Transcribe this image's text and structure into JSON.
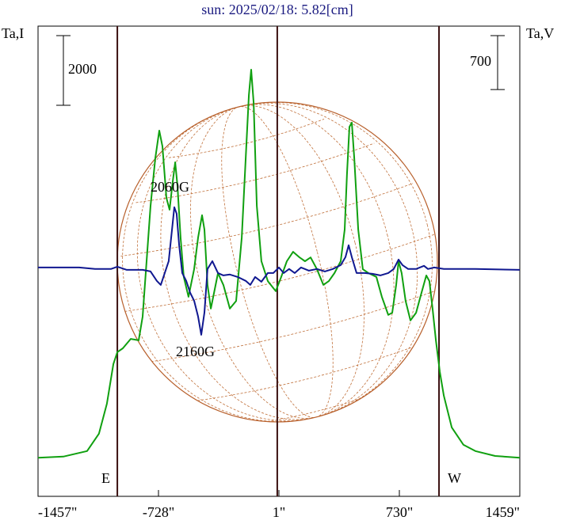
{
  "chart_data": {
    "type": "line",
    "title": "sun: 2025/02/18: 5.82[cm]",
    "y_label": "Ta,I",
    "y2_label": "Ta,V",
    "xlim": [
      -1457,
      1459
    ],
    "xticks": [
      {
        "value": -1457,
        "label": "-1457\""
      },
      {
        "value": -728,
        "label": "-728\""
      },
      {
        "value": 1,
        "label": "1\""
      },
      {
        "value": 730,
        "label": "730\""
      },
      {
        "value": 1459,
        "label": "1459\""
      }
    ],
    "ylim": [
      0,
      13500
    ],
    "y2lim": [
      -3000,
      3100
    ],
    "scale_bars": [
      {
        "value": 2000,
        "axis": "y"
      },
      {
        "value": 700,
        "axis": "y2"
      }
    ],
    "vlines": [
      -977,
      -9,
      970
    ],
    "annotations": [
      "2060G",
      "2160G",
      "E",
      "W"
    ],
    "series": [
      {
        "name": "Ta,I",
        "color": "#10a010",
        "x": [
          -1457,
          -1304,
          -1160,
          -1088,
          -1040,
          -1001,
          -977,
          -944,
          -896,
          -848,
          -824,
          -800,
          -776,
          -747,
          -723,
          -704,
          -680,
          -661,
          -642,
          -627,
          -613,
          -594,
          -575,
          -546,
          -512,
          -488,
          -464,
          -450,
          -431,
          -411,
          -392,
          -368,
          -335,
          -296,
          -258,
          -224,
          -200,
          -181,
          -167,
          -152,
          -133,
          -105,
          -66,
          -18,
          15,
          49,
          87,
          126,
          159,
          193,
          231,
          270,
          303,
          337,
          375,
          399,
          413,
          428,
          442,
          457,
          481,
          509,
          543,
          591,
          624,
          663,
          687,
          711,
          725,
          744,
          768,
          797,
          831,
          864,
          893,
          912,
          931,
          951,
          975,
          999,
          1047,
          1118,
          1190,
          1310,
          1459
        ],
        "values": [
          1110,
          1140,
          1300,
          1800,
          2660,
          3800,
          4140,
          4250,
          4520,
          4480,
          5160,
          6750,
          8340,
          9710,
          10500,
          10050,
          8570,
          8230,
          9020,
          9590,
          8910,
          7430,
          6300,
          5730,
          6520,
          7430,
          8070,
          7660,
          6070,
          5390,
          5840,
          6410,
          6070,
          5390,
          5610,
          7430,
          9710,
          11520,
          12250,
          11300,
          8340,
          6750,
          6180,
          5890,
          6300,
          6750,
          7020,
          6860,
          6750,
          6860,
          6520,
          6070,
          6180,
          6410,
          6750,
          7660,
          9250,
          10610,
          10730,
          9710,
          7660,
          6520,
          6410,
          6300,
          5730,
          5210,
          5270,
          6070,
          6750,
          6410,
          5610,
          5050,
          5270,
          5840,
          6340,
          6180,
          5390,
          4480,
          3570,
          2890,
          1980,
          1480,
          1300,
          1160,
          1110
        ]
      },
      {
        "name": "Ta,V",
        "color": "#101890",
        "axis": "y2",
        "x": [
          -1457,
          -1208,
          -1112,
          -1016,
          -977,
          -920,
          -824,
          -776,
          -738,
          -714,
          -690,
          -666,
          -646,
          -632,
          -618,
          -603,
          -584,
          -560,
          -536,
          -512,
          -488,
          -469,
          -450,
          -431,
          -402,
          -368,
          -335,
          -296,
          -248,
          -200,
          -172,
          -143,
          -105,
          -66,
          -33,
          1,
          30,
          63,
          97,
          135,
          183,
          231,
          279,
          327,
          375,
          404,
          423,
          442,
          471,
          519,
          567,
          615,
          663,
          696,
          725,
          749,
          783,
          831,
          879,
          903,
          941,
          999,
          1094,
          1190,
          1459
        ],
        "values": [
          -31,
          -31,
          -51,
          -51,
          -21,
          -62,
          -62,
          -82,
          -205,
          -257,
          -103,
          51,
          462,
          750,
          668,
          257,
          -103,
          -205,
          -359,
          -462,
          -668,
          -904,
          -616,
          -51,
          51,
          -103,
          -134,
          -123,
          -154,
          -205,
          -257,
          -154,
          -216,
          -103,
          -103,
          -31,
          -103,
          -51,
          -103,
          -31,
          -72,
          -51,
          -82,
          -51,
          0,
          103,
          257,
          103,
          -103,
          -103,
          -113,
          -134,
          -103,
          -51,
          72,
          0,
          -51,
          -51,
          -10,
          -51,
          -31,
          -51,
          -51,
          -51,
          -62
        ]
      }
    ]
  }
}
